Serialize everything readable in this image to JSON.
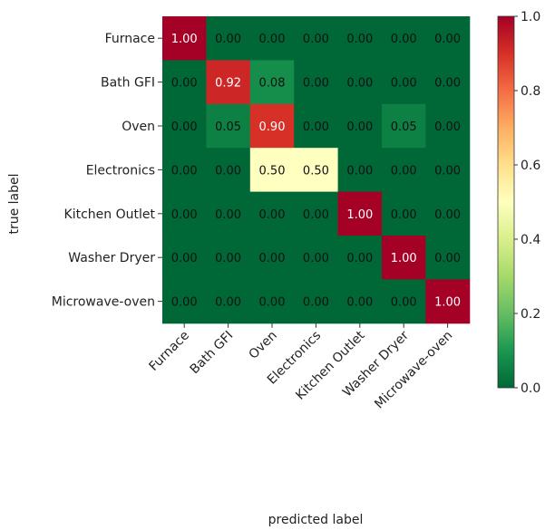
{
  "chart_data": {
    "type": "heatmap",
    "title": "",
    "xlabel": "predicted label",
    "ylabel": "true label",
    "categories_x": [
      "Furnace",
      "Bath GFI",
      "Oven",
      "Electronics",
      "Kitchen Outlet",
      "Washer Dryer",
      "Microwave-oven"
    ],
    "categories_y": [
      "Furnace",
      "Bath GFI",
      "Oven",
      "Electronics",
      "Kitchen Outlet",
      "Washer Dryer",
      "Microwave-oven"
    ],
    "values": [
      [
        1.0,
        0.0,
        0.0,
        0.0,
        0.0,
        0.0,
        0.0
      ],
      [
        0.0,
        0.92,
        0.08,
        0.0,
        0.0,
        0.0,
        0.0
      ],
      [
        0.0,
        0.05,
        0.9,
        0.0,
        0.0,
        0.05,
        0.0
      ],
      [
        0.0,
        0.0,
        0.5,
        0.5,
        0.0,
        0.0,
        0.0
      ],
      [
        0.0,
        0.0,
        0.0,
        0.0,
        1.0,
        0.0,
        0.0
      ],
      [
        0.0,
        0.0,
        0.0,
        0.0,
        0.0,
        1.0,
        0.0
      ],
      [
        0.0,
        0.0,
        0.0,
        0.0,
        0.0,
        0.0,
        1.0
      ]
    ],
    "value_format": "0.00",
    "colormap": "RdYlGn_r",
    "colorbar": {
      "range": [
        0.0,
        1.0
      ],
      "ticks": [
        "0.0",
        "0.2",
        "0.4",
        "0.6",
        "0.8",
        "1.0"
      ],
      "tick_values": [
        0.0,
        0.2,
        0.4,
        0.6,
        0.8,
        1.0
      ]
    },
    "grid": false
  }
}
